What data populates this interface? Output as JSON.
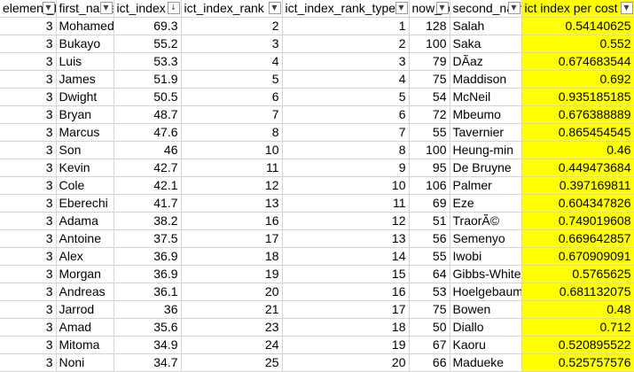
{
  "sheet": {
    "columns": [
      {
        "label": "element_type",
        "icon": "filter-sort-icon"
      },
      {
        "label": "first_name",
        "icon": "filter-dropdown-icon"
      },
      {
        "label": "ict_index",
        "icon": "sort-descending-icon"
      },
      {
        "label": "ict_index_rank",
        "icon": "filter-dropdown-icon"
      },
      {
        "label": "ict_index_rank_type",
        "icon": "filter-dropdown-icon"
      },
      {
        "label": "now_cost",
        "icon": "filter-dropdown-icon"
      },
      {
        "label": "second_name",
        "icon": "filter-dropdown-icon"
      },
      {
        "label": "ict index per cost",
        "icon": "filter-dropdown-icon"
      }
    ],
    "highlight_color": "#ffff00",
    "rows": [
      [
        "3",
        "Mohamed",
        "69.3",
        "2",
        "1",
        "128",
        "Salah",
        "0.54140625"
      ],
      [
        "3",
        "Bukayo",
        "55.2",
        "3",
        "2",
        "100",
        "Saka",
        "0.552"
      ],
      [
        "3",
        "Luis",
        "53.3",
        "4",
        "3",
        "79",
        "DÃ­az",
        "0.674683544"
      ],
      [
        "3",
        "James",
        "51.9",
        "5",
        "4",
        "75",
        "Maddison",
        "0.692"
      ],
      [
        "3",
        "Dwight",
        "50.5",
        "6",
        "5",
        "54",
        "McNeil",
        "0.935185185"
      ],
      [
        "3",
        "Bryan",
        "48.7",
        "7",
        "6",
        "72",
        "Mbeumo",
        "0.676388889"
      ],
      [
        "3",
        "Marcus",
        "47.6",
        "8",
        "7",
        "55",
        "Tavernier",
        "0.865454545"
      ],
      [
        "3",
        "Son",
        "46",
        "10",
        "8",
        "100",
        "Heung-min",
        "0.46"
      ],
      [
        "3",
        "Kevin",
        "42.7",
        "11",
        "9",
        "95",
        "De Bruyne",
        "0.449473684"
      ],
      [
        "3",
        "Cole",
        "42.1",
        "12",
        "10",
        "106",
        "Palmer",
        "0.397169811"
      ],
      [
        "3",
        "Eberechi",
        "41.7",
        "13",
        "11",
        "69",
        "Eze",
        "0.604347826"
      ],
      [
        "3",
        "Adama",
        "38.2",
        "16",
        "12",
        "51",
        "TraorÃ©",
        "0.749019608"
      ],
      [
        "3",
        "Antoine",
        "37.5",
        "17",
        "13",
        "56",
        "Semenyo",
        "0.669642857"
      ],
      [
        "3",
        "Alex",
        "36.9",
        "18",
        "14",
        "55",
        "Iwobi",
        "0.670909091"
      ],
      [
        "3",
        "Morgan",
        "36.9",
        "19",
        "15",
        "64",
        "Gibbs-White",
        "0.5765625"
      ],
      [
        "3",
        "Andreas",
        "36.1",
        "20",
        "16",
        "53",
        "Hoelgebaum",
        "0.681132075"
      ],
      [
        "3",
        "Jarrod",
        "36",
        "21",
        "17",
        "75",
        "Bowen",
        "0.48"
      ],
      [
        "3",
        "Amad",
        "35.6",
        "23",
        "18",
        "50",
        "Diallo",
        "0.712"
      ],
      [
        "3",
        "Mitoma",
        "34.9",
        "24",
        "19",
        "67",
        "Kaoru",
        "0.520895522"
      ],
      [
        "3",
        "Noni",
        "34.7",
        "25",
        "20",
        "66",
        "Madueke",
        "0.525757576"
      ]
    ]
  }
}
